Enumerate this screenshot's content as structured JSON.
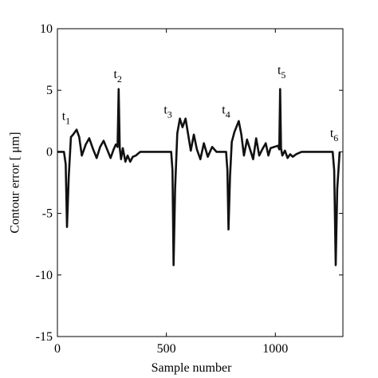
{
  "chart_data": {
    "type": "line",
    "xlabel": "Sample number",
    "ylabel": "Contour error  [ μm]",
    "xlim": [
      0,
      1310
    ],
    "ylim": [
      -15,
      10
    ],
    "xticks": [
      0,
      500,
      1000
    ],
    "yticks": [
      -15,
      -10,
      -5,
      0,
      5,
      10
    ],
    "x": [
      0,
      30,
      38,
      44,
      52,
      62,
      72,
      88,
      100,
      112,
      130,
      146,
      164,
      180,
      196,
      212,
      228,
      244,
      258,
      268,
      276,
      281,
      286,
      292,
      300,
      312,
      322,
      334,
      346,
      360,
      380,
      412,
      522,
      528,
      533,
      540,
      550,
      562,
      574,
      588,
      600,
      612,
      626,
      640,
      656,
      672,
      690,
      710,
      730,
      774,
      780,
      785,
      792,
      800,
      812,
      832,
      844,
      856,
      870,
      884,
      898,
      912,
      926,
      940,
      956,
      968,
      978,
      1012,
      1018,
      1022,
      1026,
      1032,
      1044,
      1056,
      1068,
      1080,
      1095,
      1120,
      1263,
      1270,
      1277,
      1284,
      1295
    ],
    "series": [
      {
        "color": "#111111",
        "values": [
          0,
          0,
          -1,
          -6.1,
          -2,
          1.2,
          1.4,
          1.8,
          1.2,
          -0.3,
          0.6,
          1.1,
          0.2,
          -0.5,
          0.4,
          0.9,
          0.2,
          -0.5,
          0.2,
          0.6,
          0.4,
          5.1,
          0.3,
          -0.6,
          0.3,
          -0.8,
          -0.3,
          -0.8,
          -0.4,
          -0.3,
          0,
          0,
          0,
          -1.5,
          -9.2,
          -3,
          1.5,
          2.7,
          2.0,
          2.7,
          1.4,
          0.1,
          1.4,
          0.2,
          -0.6,
          0.7,
          -0.4,
          0.4,
          0,
          0,
          -1.5,
          -6.3,
          -2,
          0.8,
          1.6,
          2.5,
          1.4,
          -0.3,
          1.0,
          0.2,
          -0.6,
          1.1,
          -0.3,
          0.2,
          0.7,
          -0.3,
          0.3,
          0.5,
          0.2,
          5.1,
          0.3,
          -0.3,
          0.1,
          -0.5,
          -0.2,
          -0.4,
          -0.2,
          0,
          0,
          -1.5,
          -9.2,
          -3,
          0
        ]
      }
    ],
    "annotations": [
      {
        "text": "t",
        "sub": "1",
        "x": 40,
        "y": 2.6
      },
      {
        "text": "t",
        "sub": "2",
        "x": 277,
        "y": 6
      },
      {
        "text": "t",
        "sub": "3",
        "x": 507,
        "y": 3.1
      },
      {
        "text": "t",
        "sub": "4",
        "x": 774,
        "y": 3.1
      },
      {
        "text": "t",
        "sub": "5",
        "x": 1029,
        "y": 6.3
      },
      {
        "text": "t",
        "sub": "6",
        "x": 1270,
        "y": 1.2
      }
    ]
  }
}
